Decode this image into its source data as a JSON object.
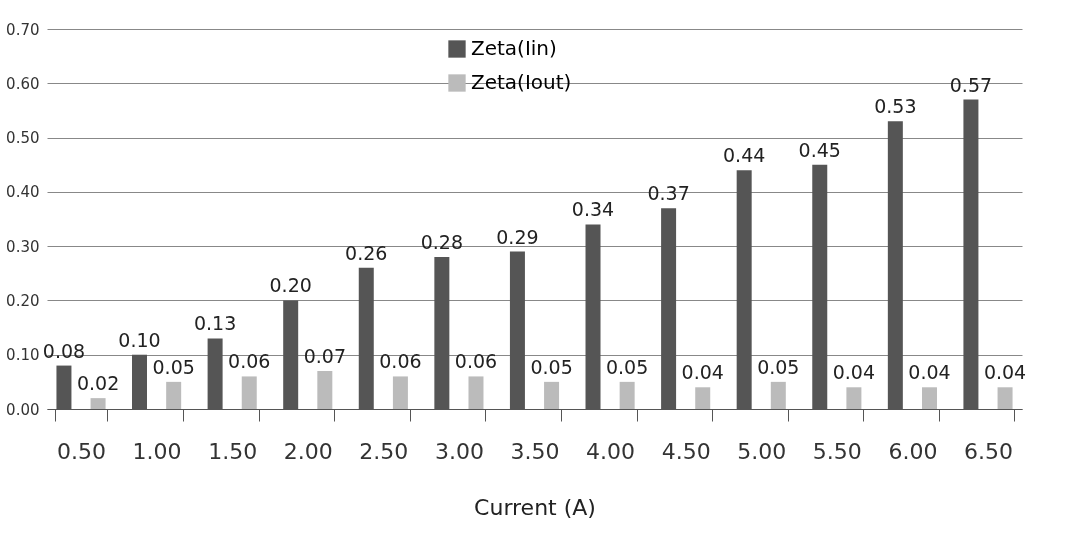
{
  "chart_data": {
    "type": "bar",
    "xlabel": "Current (A)",
    "categories": [
      "0.50",
      "1.00",
      "1.50",
      "2.00",
      "2.50",
      "3.00",
      "3.50",
      "4.00",
      "4.50",
      "5.00",
      "5.50",
      "6.00",
      "6.50"
    ],
    "series": [
      {
        "name": "Zeta(Iin)",
        "color": "#555555",
        "values": [
          0.08,
          0.1,
          0.13,
          0.2,
          0.26,
          0.28,
          0.29,
          0.34,
          0.37,
          0.44,
          0.45,
          0.53,
          0.57
        ],
        "value_labels": [
          "0.08",
          "0.10",
          "0.13",
          "0.20",
          "0.26",
          "0.28",
          "0.29",
          "0.34",
          "0.37",
          "0.44",
          "0.45",
          "0.53",
          "0.57"
        ]
      },
      {
        "name": "Zeta(Iout)",
        "color": "#bbbbbb",
        "values": [
          0.02,
          0.05,
          0.06,
          0.07,
          0.06,
          0.06,
          0.05,
          0.05,
          0.04,
          0.05,
          0.04,
          0.04,
          0.04
        ],
        "value_labels": [
          "0.02",
          "0.05",
          "0.06",
          "0.07",
          "0.06",
          "0.06",
          "0.05",
          "0.05",
          "0.04",
          "0.05",
          "0.04",
          "0.04",
          "0.04"
        ]
      }
    ],
    "ylim": [
      0,
      0.7
    ],
    "yticks": [
      {
        "value": 0,
        "label": "0.00"
      },
      {
        "value": 0.1,
        "label": "0.10"
      },
      {
        "value": 0.2,
        "label": "0.20"
      },
      {
        "value": 0.3,
        "label": "0.30"
      },
      {
        "value": 0.4,
        "label": "0.40"
      },
      {
        "value": 0.5,
        "label": "0.50"
      },
      {
        "value": 0.6,
        "label": "0.60"
      },
      {
        "value": 0.7,
        "label": "0.70"
      }
    ],
    "grid": "y",
    "legend": "top"
  }
}
